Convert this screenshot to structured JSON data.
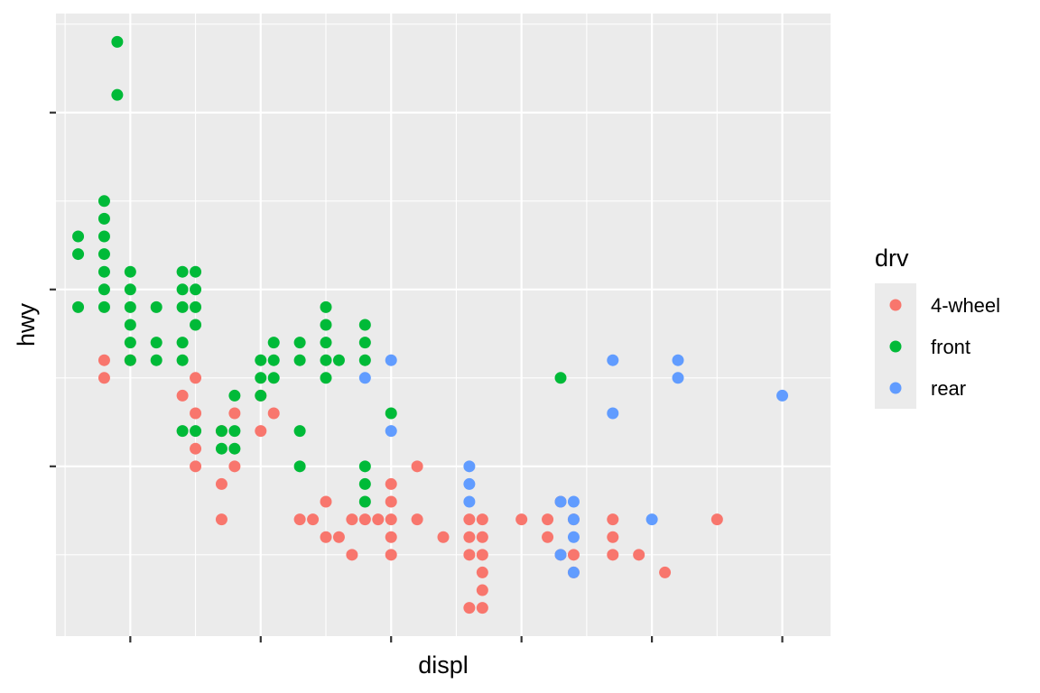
{
  "chart_data": {
    "type": "scatter",
    "title": "",
    "xlabel": "displ",
    "ylabel": "hwy",
    "xlim": [
      1.43,
      7.37
    ],
    "ylim": [
      10.4,
      45.6
    ],
    "x_ticks": [
      2,
      3,
      4,
      5,
      6,
      7
    ],
    "y_ticks": [
      20,
      30,
      40
    ],
    "x_minor_grid": [
      1.5,
      2.5,
      3.5,
      4.5,
      5.5,
      6.5
    ],
    "y_minor_grid": [
      15,
      25,
      35,
      45
    ],
    "tick_labels_shown": false,
    "grid": true,
    "panel_background": "#EBEBEB",
    "legend": {
      "title": "drv",
      "placement": "right",
      "entries": [
        {
          "name": "4-wheel",
          "color": "#F8766D"
        },
        {
          "name": "front",
          "color": "#00BA38"
        },
        {
          "name": "rear",
          "color": "#619CFF"
        }
      ]
    },
    "series": [
      {
        "name": "4-wheel",
        "color": "#F8766D",
        "points": [
          [
            1.8,
            26
          ],
          [
            1.8,
            25
          ],
          [
            2.0,
            26
          ],
          [
            2.4,
            24
          ],
          [
            2.5,
            25
          ],
          [
            2.5,
            23
          ],
          [
            2.5,
            21
          ],
          [
            2.5,
            20
          ],
          [
            2.8,
            23
          ],
          [
            2.8,
            20
          ],
          [
            2.7,
            22
          ],
          [
            2.7,
            19
          ],
          [
            2.7,
            17
          ],
          [
            3.0,
            24
          ],
          [
            3.0,
            22
          ],
          [
            3.1,
            23
          ],
          [
            3.3,
            17
          ],
          [
            3.4,
            17
          ],
          [
            3.5,
            16
          ],
          [
            3.5,
            18
          ],
          [
            3.6,
            16
          ],
          [
            3.7,
            17
          ],
          [
            3.7,
            15
          ],
          [
            3.8,
            17
          ],
          [
            3.9,
            17
          ],
          [
            4.0,
            18
          ],
          [
            4.0,
            16
          ],
          [
            4.0,
            15
          ],
          [
            4.0,
            19
          ],
          [
            4.0,
            17
          ],
          [
            4.2,
            17
          ],
          [
            4.2,
            20
          ],
          [
            4.4,
            16
          ],
          [
            4.6,
            17
          ],
          [
            4.6,
            15
          ],
          [
            4.6,
            16
          ],
          [
            4.6,
            12
          ],
          [
            4.7,
            14
          ],
          [
            4.7,
            13
          ],
          [
            4.7,
            16
          ],
          [
            4.7,
            17
          ],
          [
            4.7,
            15
          ],
          [
            4.7,
            12
          ],
          [
            5.0,
            17
          ],
          [
            5.2,
            16
          ],
          [
            5.2,
            17
          ],
          [
            5.3,
            15
          ],
          [
            5.3,
            18
          ],
          [
            5.4,
            15
          ],
          [
            5.4,
            14
          ],
          [
            5.4,
            17
          ],
          [
            5.7,
            16
          ],
          [
            5.7,
            17
          ],
          [
            5.7,
            15
          ],
          [
            5.9,
            15
          ],
          [
            6.1,
            14
          ],
          [
            6.5,
            17
          ]
        ]
      },
      {
        "name": "front",
        "color": "#00BA38",
        "points": [
          [
            1.6,
            32
          ],
          [
            1.6,
            33
          ],
          [
            1.6,
            29
          ],
          [
            1.8,
            29
          ],
          [
            1.8,
            30
          ],
          [
            1.8,
            31
          ],
          [
            1.8,
            32
          ],
          [
            1.8,
            33
          ],
          [
            1.8,
            34
          ],
          [
            1.8,
            35
          ],
          [
            1.9,
            41
          ],
          [
            1.9,
            44
          ],
          [
            2.0,
            26
          ],
          [
            2.0,
            27
          ],
          [
            2.0,
            28
          ],
          [
            2.0,
            29
          ],
          [
            2.0,
            30
          ],
          [
            2.0,
            31
          ],
          [
            2.2,
            26
          ],
          [
            2.2,
            27
          ],
          [
            2.2,
            29
          ],
          [
            2.4,
            22
          ],
          [
            2.4,
            26
          ],
          [
            2.4,
            27
          ],
          [
            2.4,
            29
          ],
          [
            2.4,
            30
          ],
          [
            2.4,
            31
          ],
          [
            2.5,
            22
          ],
          [
            2.5,
            28
          ],
          [
            2.5,
            29
          ],
          [
            2.5,
            30
          ],
          [
            2.5,
            31
          ],
          [
            2.7,
            21
          ],
          [
            2.7,
            22
          ],
          [
            2.8,
            21
          ],
          [
            2.8,
            22
          ],
          [
            2.8,
            24
          ],
          [
            3.0,
            24
          ],
          [
            3.0,
            25
          ],
          [
            3.0,
            26
          ],
          [
            3.1,
            25
          ],
          [
            3.1,
            26
          ],
          [
            3.1,
            27
          ],
          [
            3.3,
            20
          ],
          [
            3.3,
            22
          ],
          [
            3.3,
            26
          ],
          [
            3.3,
            27
          ],
          [
            3.5,
            25
          ],
          [
            3.5,
            26
          ],
          [
            3.5,
            27
          ],
          [
            3.5,
            28
          ],
          [
            3.5,
            29
          ],
          [
            3.6,
            26
          ],
          [
            3.8,
            18
          ],
          [
            3.8,
            19
          ],
          [
            3.8,
            20
          ],
          [
            3.8,
            26
          ],
          [
            3.8,
            27
          ],
          [
            3.8,
            28
          ],
          [
            4.0,
            23
          ],
          [
            5.3,
            25
          ]
        ]
      },
      {
        "name": "rear",
        "color": "#619CFF",
        "points": [
          [
            3.8,
            25
          ],
          [
            4.0,
            26
          ],
          [
            4.0,
            22
          ],
          [
            4.6,
            18
          ],
          [
            4.6,
            19
          ],
          [
            4.6,
            20
          ],
          [
            5.3,
            15
          ],
          [
            5.3,
            18
          ],
          [
            5.4,
            14
          ],
          [
            5.4,
            16
          ],
          [
            5.4,
            17
          ],
          [
            5.4,
            18
          ],
          [
            5.7,
            23
          ],
          [
            5.7,
            26
          ],
          [
            6.0,
            17
          ],
          [
            6.2,
            25
          ],
          [
            6.2,
            26
          ],
          [
            7.0,
            24
          ]
        ]
      }
    ]
  }
}
